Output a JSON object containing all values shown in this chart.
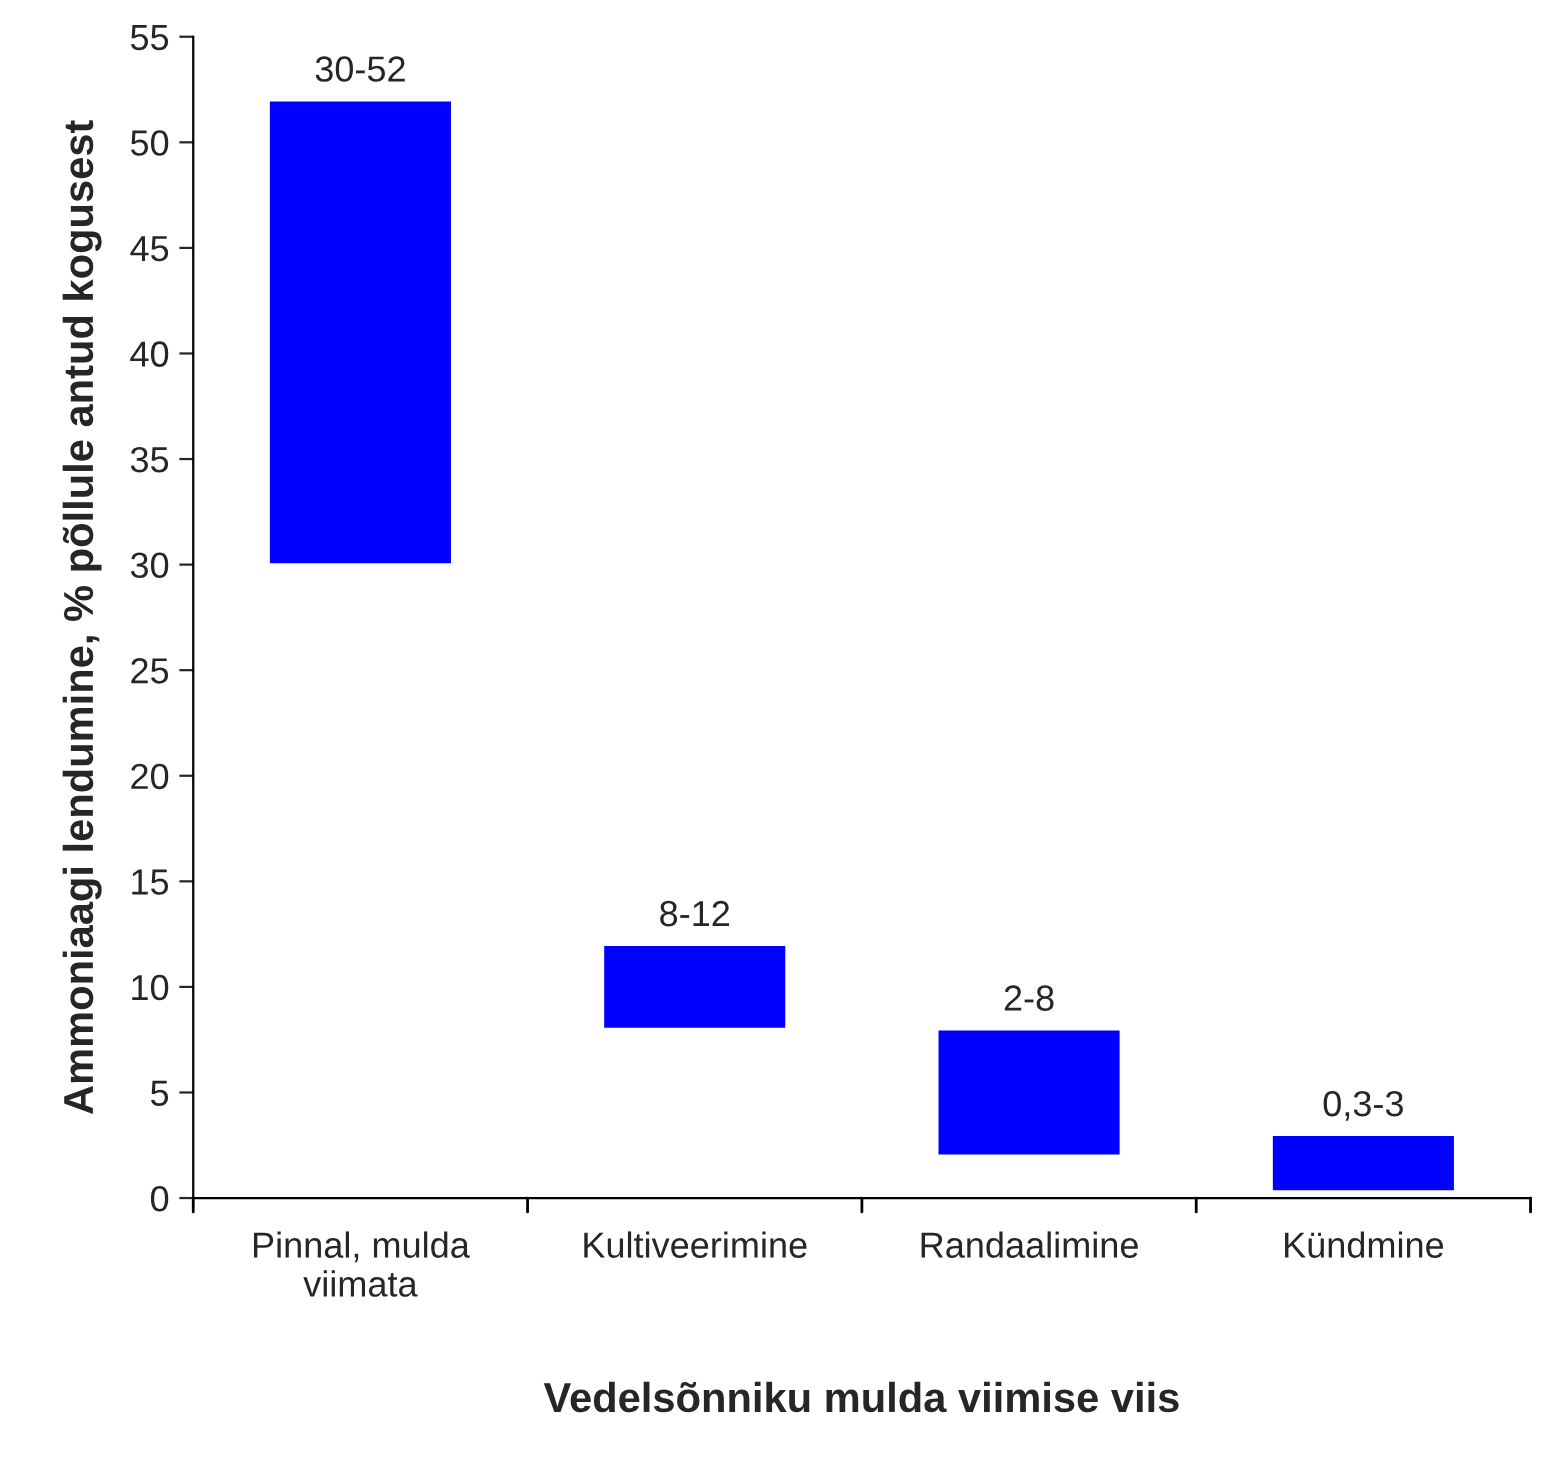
{
  "chart_data": {
    "type": "bar",
    "xlabel": "Vedelsõnniku mulda viimise viis",
    "ylabel": "Ammoniaagi lendumine, % põllule antud kogusest",
    "categories": [
      "Pinnal, mulda\nviimata",
      "Kultiveerimine",
      "Randaalimine",
      "Kündmine"
    ],
    "base": [
      30,
      8,
      2,
      0.3
    ],
    "values": [
      22,
      4,
      6,
      2.7
    ],
    "value_labels": [
      "30-52",
      "8-12",
      "2-8",
      "0,3-3"
    ],
    "color": "#0000ff",
    "ylim": [
      0,
      55
    ],
    "yticks": [
      0,
      5,
      10,
      15,
      20,
      25,
      30,
      35,
      40,
      45,
      50,
      55
    ],
    "grid": false,
    "legend": false
  }
}
